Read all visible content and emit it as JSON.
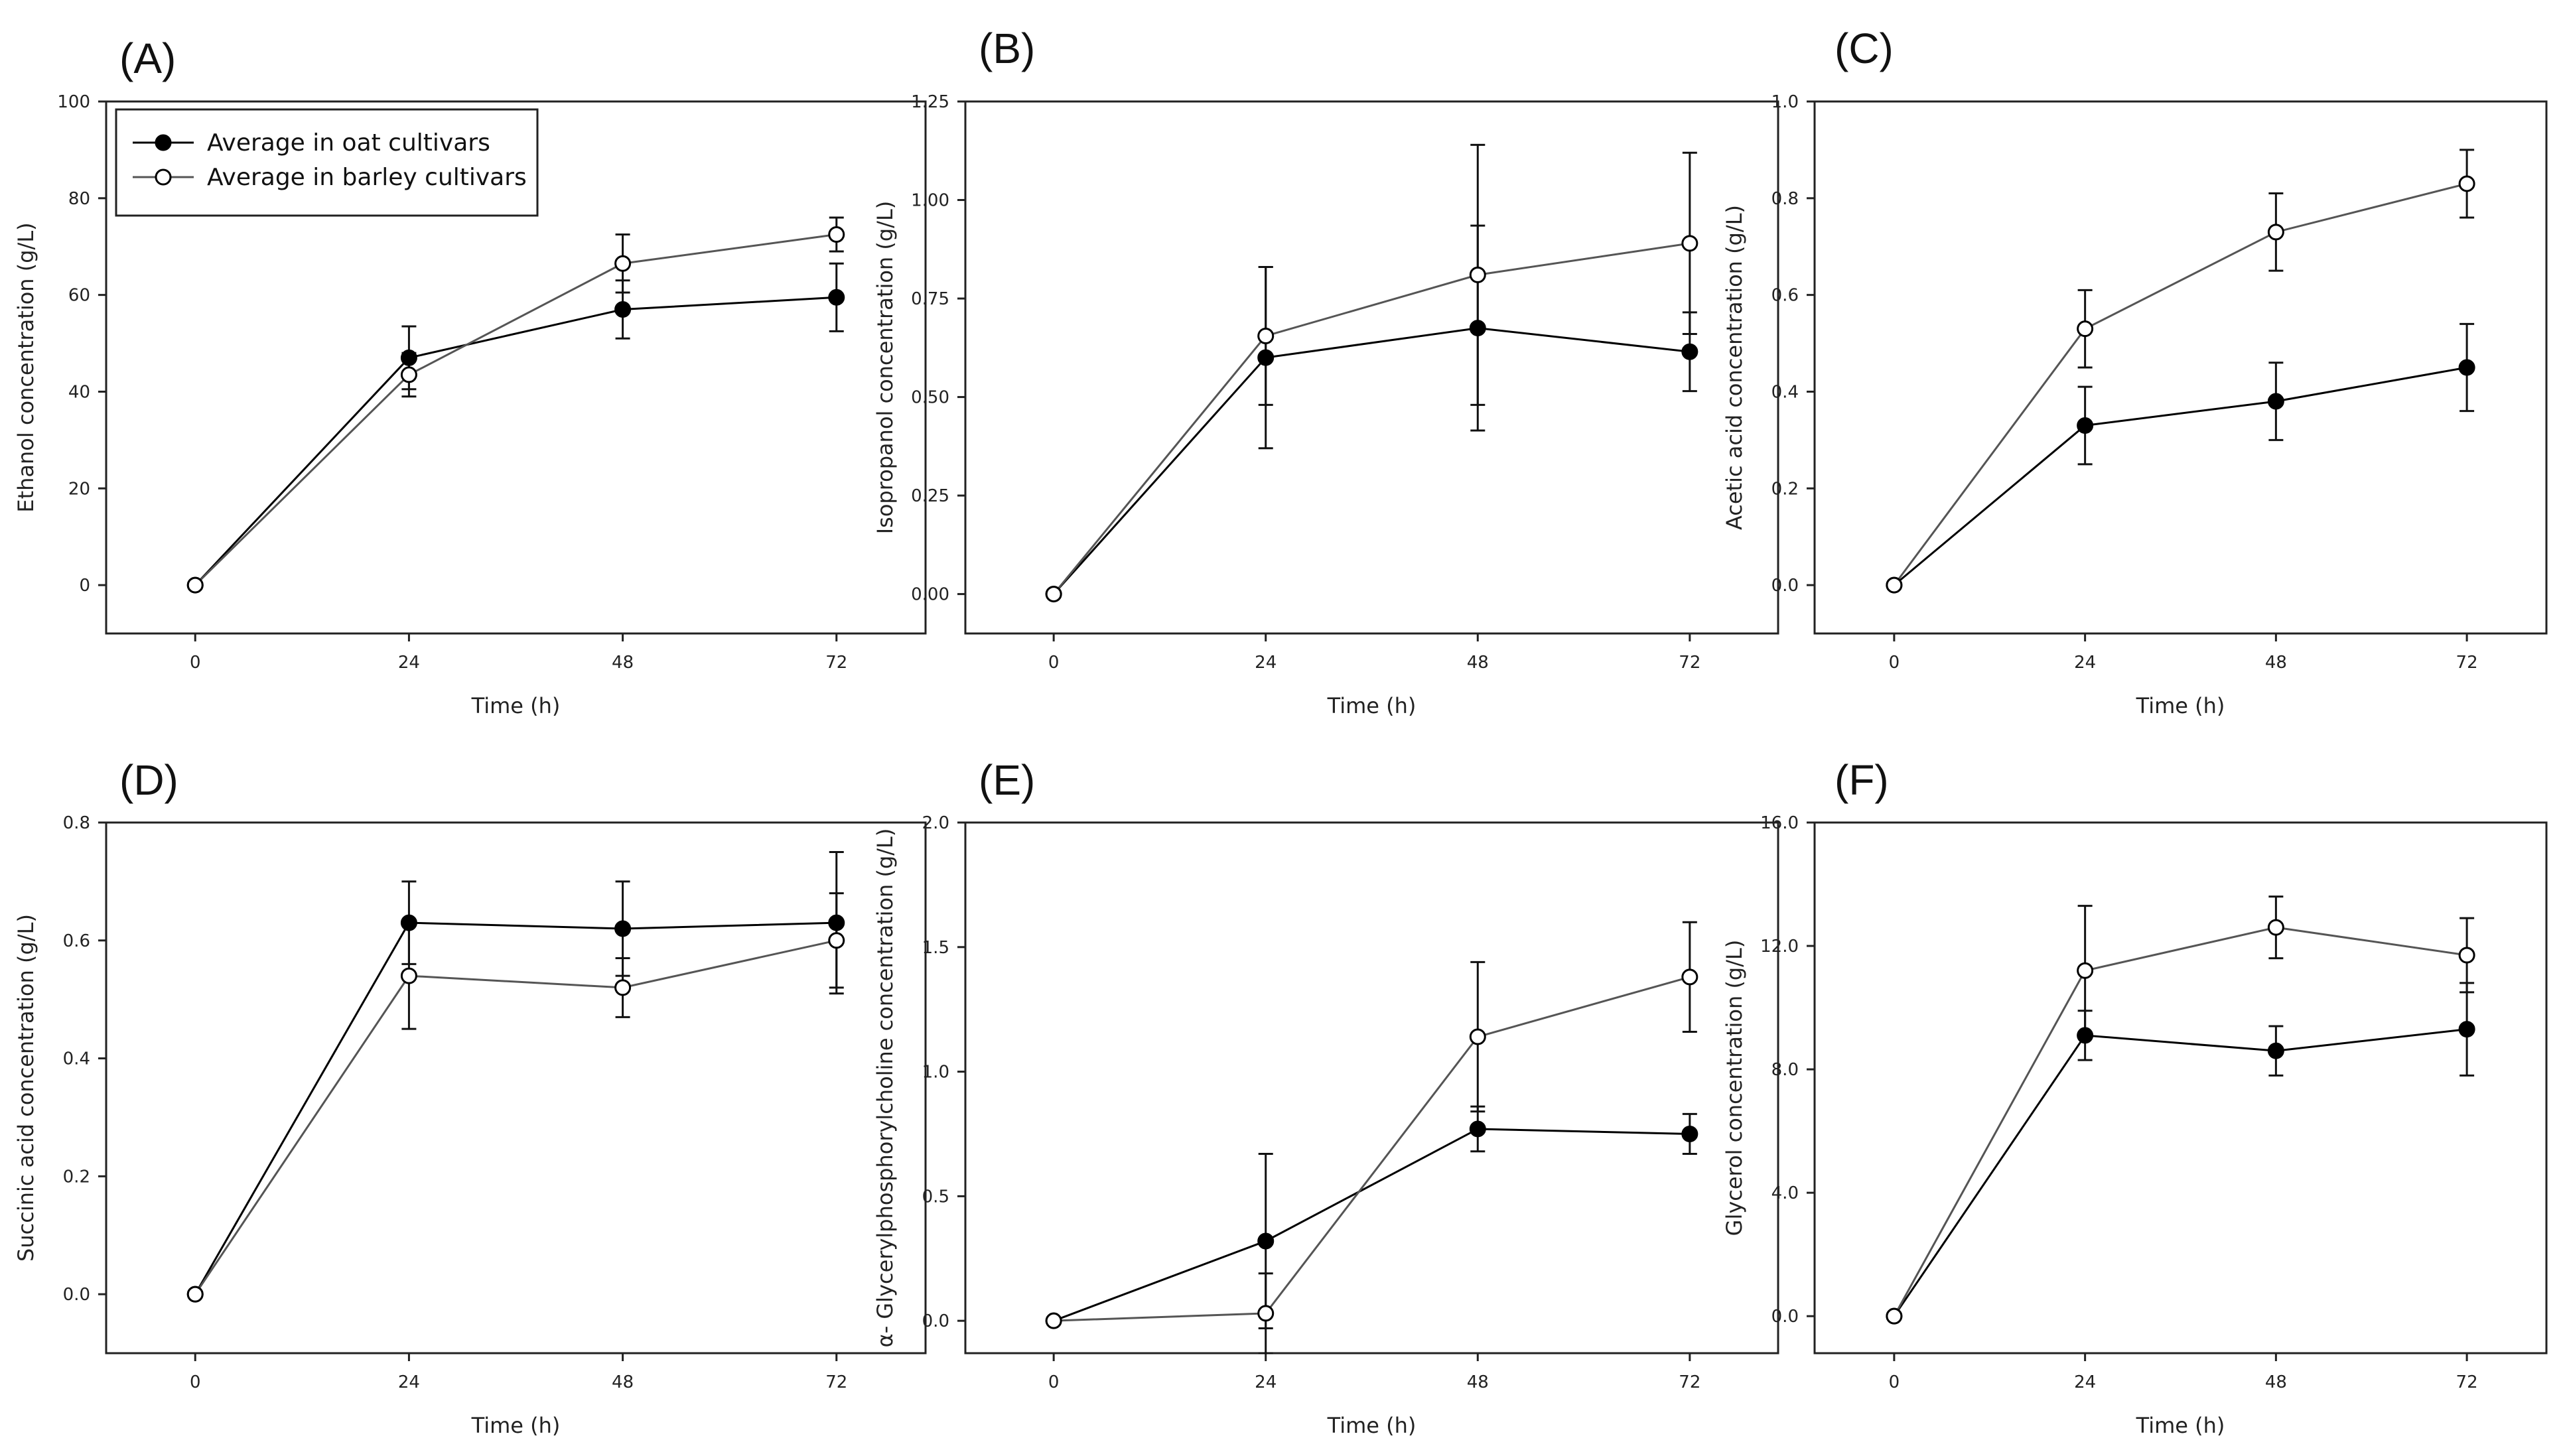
{
  "chart_data": [
    {
      "type": "line",
      "panel": "(A)",
      "xlabel": "Time (h)",
      "ylabel": "Ethanol concentration (g/L)",
      "x": [
        0,
        24,
        48,
        72
      ],
      "xlim": [
        -10,
        82
      ],
      "ylim": [
        -10,
        100
      ],
      "yticks": [
        0,
        20,
        40,
        60,
        80,
        100
      ],
      "ytick_labels": [
        "0",
        "20",
        "40",
        "60",
        "80",
        "100"
      ],
      "xticks": [
        0,
        24,
        48,
        72
      ],
      "xtick_labels": [
        "0",
        "24",
        "48",
        "72"
      ],
      "series": [
        {
          "name": "Average in oat cultivars",
          "marker": "filled",
          "values": [
            0,
            47,
            57,
            59.5
          ],
          "errors": [
            0,
            6.5,
            6,
            7
          ]
        },
        {
          "name": "Average in barley cultivars",
          "marker": "open",
          "values": [
            0,
            43.5,
            66.5,
            72.5
          ],
          "errors": [
            0,
            4.5,
            6,
            3.5
          ]
        }
      ]
    },
    {
      "type": "line",
      "panel": "(B)",
      "xlabel": "Time (h)",
      "ylabel": "Isopropanol concentration (g/L)",
      "x": [
        0,
        24,
        48,
        72
      ],
      "xlim": [
        -10,
        82
      ],
      "ylim": [
        -0.1,
        1.25
      ],
      "yticks": [
        0,
        0.25,
        0.5,
        0.75,
        1.0,
        1.25
      ],
      "ytick_labels": [
        "0.00",
        "0.25",
        "0.50",
        "0.75",
        "1.00",
        "1.25"
      ],
      "xticks": [
        0,
        24,
        48,
        72
      ],
      "xtick_labels": [
        "0",
        "24",
        "48",
        "72"
      ],
      "series": [
        {
          "name": "Average in oat cultivars",
          "marker": "filled",
          "values": [
            0,
            0.6,
            0.675,
            0.615
          ],
          "errors": [
            0,
            0.23,
            0.26,
            0.1
          ]
        },
        {
          "name": "Average in barley cultivars",
          "marker": "open",
          "values": [
            0,
            0.655,
            0.81,
            0.89
          ],
          "errors": [
            0,
            0.175,
            0.33,
            0.23
          ]
        }
      ]
    },
    {
      "type": "line",
      "panel": "(C)",
      "xlabel": "Time (h)",
      "ylabel": "Acetic acid concentration (g/L)",
      "x": [
        0,
        24,
        48,
        72
      ],
      "xlim": [
        -10,
        82
      ],
      "ylim": [
        -0.1,
        1.0
      ],
      "yticks": [
        0,
        0.2,
        0.4,
        0.6,
        0.8,
        1.0
      ],
      "ytick_labels": [
        "0.0",
        "0.2",
        "0.4",
        "0.6",
        "0.8",
        "1.0"
      ],
      "xticks": [
        0,
        24,
        48,
        72
      ],
      "xtick_labels": [
        "0",
        "24",
        "48",
        "72"
      ],
      "series": [
        {
          "name": "Average in oat cultivars",
          "marker": "filled",
          "values": [
            0,
            0.33,
            0.38,
            0.45
          ],
          "errors": [
            0,
            0.08,
            0.08,
            0.09
          ]
        },
        {
          "name": "Average in barley cultivars",
          "marker": "open",
          "values": [
            0,
            0.53,
            0.73,
            0.83
          ],
          "errors": [
            0,
            0.08,
            0.08,
            0.07
          ]
        }
      ]
    },
    {
      "type": "line",
      "panel": "(D)",
      "xlabel": "Time (h)",
      "ylabel": "Succinic acid concentration (g/L)",
      "x": [
        0,
        24,
        48,
        72
      ],
      "xlim": [
        -10,
        82
      ],
      "ylim": [
        -0.1,
        0.8
      ],
      "yticks": [
        0,
        0.2,
        0.4,
        0.6,
        0.8
      ],
      "ytick_labels": [
        "0.0",
        "0.2",
        "0.4",
        "0.6",
        "0.8"
      ],
      "xticks": [
        0,
        24,
        48,
        72
      ],
      "xtick_labels": [
        "0",
        "24",
        "48",
        "72"
      ],
      "series": [
        {
          "name": "Average in oat cultivars",
          "marker": "filled",
          "values": [
            0,
            0.63,
            0.62,
            0.63
          ],
          "errors": [
            0,
            0.07,
            0.08,
            0.12
          ]
        },
        {
          "name": "Average in barley cultivars",
          "marker": "open",
          "values": [
            0,
            0.54,
            0.52,
            0.6
          ],
          "errors": [
            0,
            0.09,
            0.05,
            0.08
          ]
        }
      ]
    },
    {
      "type": "line",
      "panel": "(E)",
      "xlabel": "Time (h)",
      "ylabel": "α- Glycerylphosphorylcholine concentration (g/L)",
      "x": [
        0,
        24,
        48,
        72
      ],
      "xlim": [
        -10,
        82
      ],
      "ylim": [
        -0.13,
        2.0
      ],
      "yticks": [
        0,
        0.5,
        1.0,
        1.5,
        2.0
      ],
      "ytick_labels": [
        "0.0",
        "0.5",
        "1.0",
        "1.5",
        "2.0"
      ],
      "xticks": [
        0,
        24,
        48,
        72
      ],
      "xtick_labels": [
        "0",
        "24",
        "48",
        "72"
      ],
      "series": [
        {
          "name": "Average in oat cultivars",
          "marker": "filled",
          "values": [
            0,
            0.32,
            0.77,
            0.75
          ],
          "errors": [
            0,
            0.35,
            0.09,
            0.08
          ]
        },
        {
          "name": "Average in barley cultivars",
          "marker": "open",
          "values": [
            0,
            0.03,
            1.14,
            1.38
          ],
          "errors": [
            0,
            0.16,
            0.3,
            0.22
          ]
        }
      ]
    },
    {
      "type": "line",
      "panel": "(F)",
      "xlabel": "Time (h)",
      "ylabel": "Glycerol concentration (g/L)",
      "x": [
        0,
        24,
        48,
        72
      ],
      "xlim": [
        -10,
        82
      ],
      "ylim": [
        -1.2,
        16.0
      ],
      "yticks": [
        0,
        4,
        8,
        12,
        16
      ],
      "ytick_labels": [
        "0.0",
        "4.0",
        "8.0",
        "12.0",
        "16.0"
      ],
      "xticks": [
        0,
        24,
        48,
        72
      ],
      "xtick_labels": [
        "0",
        "24",
        "48",
        "72"
      ],
      "series": [
        {
          "name": "Average in oat cultivars",
          "marker": "filled",
          "values": [
            0,
            9.1,
            8.6,
            9.3
          ],
          "errors": [
            0,
            0.8,
            0.8,
            1.5
          ]
        },
        {
          "name": "Average in barley cultivars",
          "marker": "open",
          "values": [
            0,
            11.2,
            12.6,
            11.7
          ],
          "errors": [
            0,
            2.1,
            1.0,
            1.2
          ]
        }
      ]
    }
  ],
  "legend": {
    "entries": [
      "Average in oat cultivars",
      "Average in barley cultivars"
    ],
    "placement": "top-left of panel (A)"
  },
  "colors": {
    "oat_line": "#000000",
    "barley_line": "#555555",
    "axis": "#222222",
    "marker_fill_open": "#ffffff"
  }
}
